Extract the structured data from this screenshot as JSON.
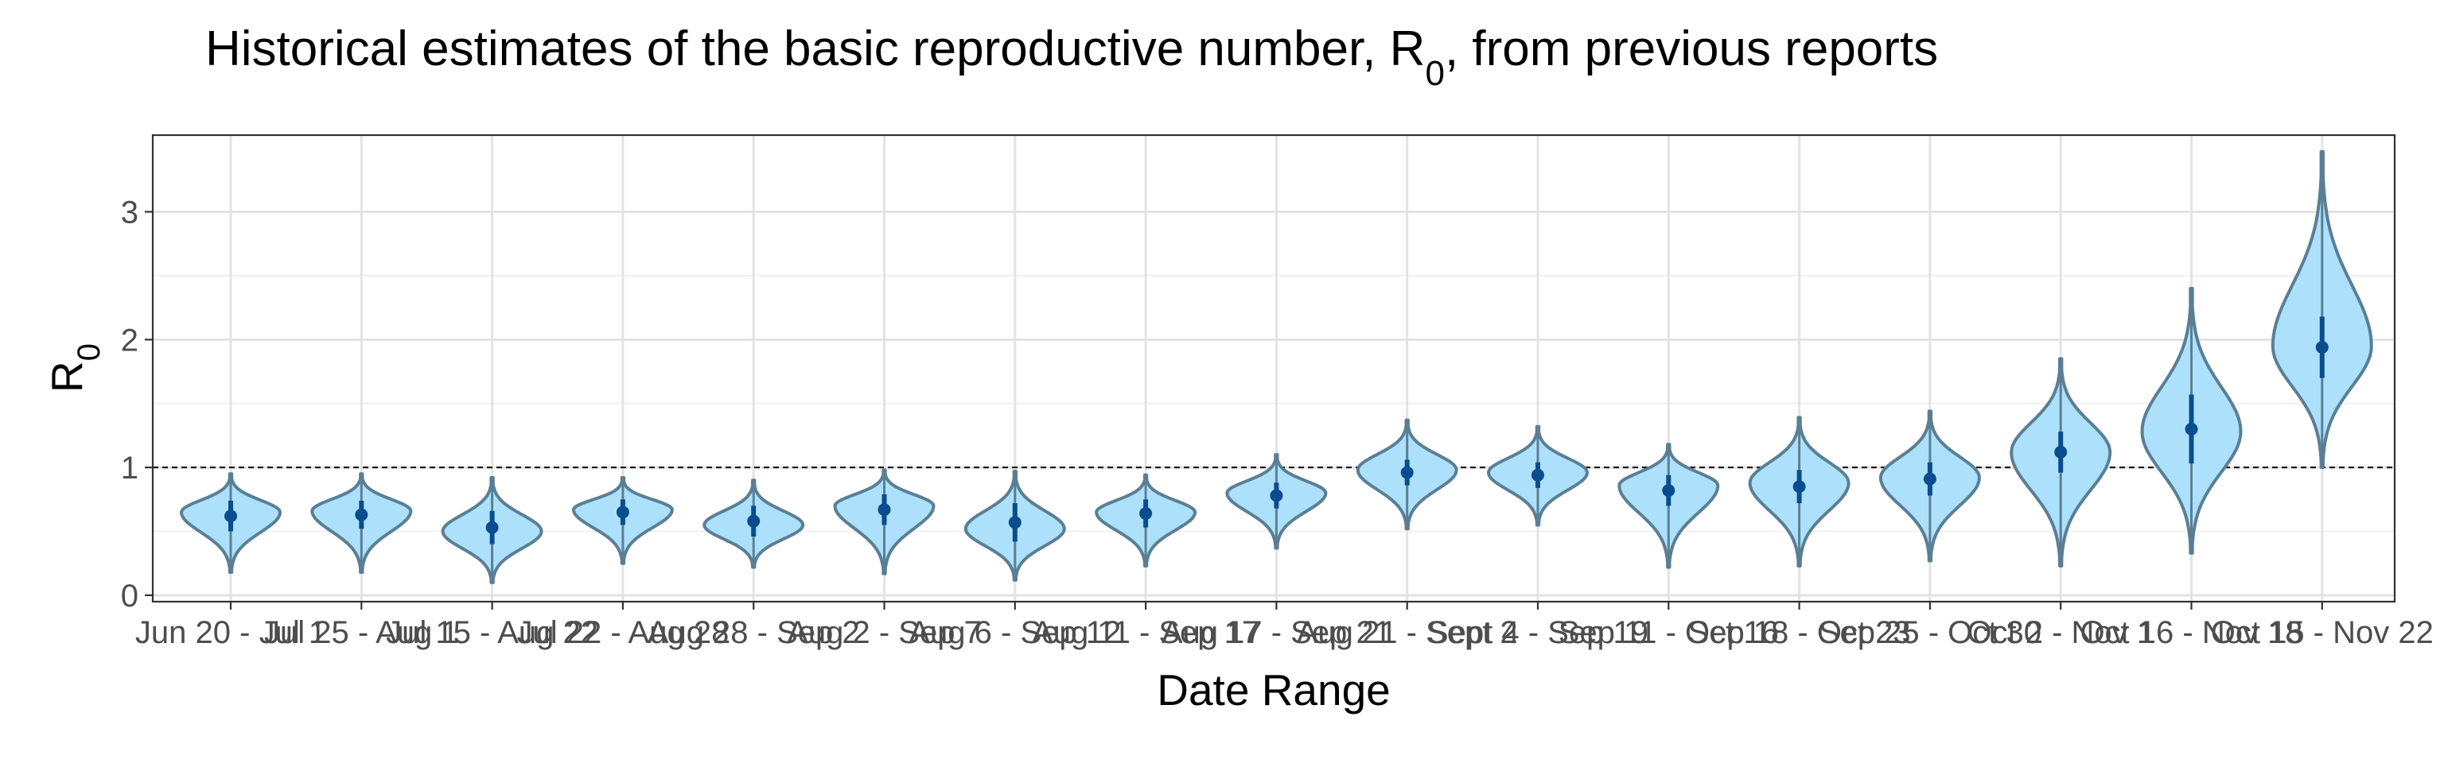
{
  "chart_data": {
    "type": "violin",
    "title_prefix": "Historical estimates of the basic reproductive number, R",
    "title_sub": "0",
    "title_suffix": ", from previous reports",
    "xlabel": "Date Range",
    "ylabel_main": "R",
    "ylabel_sub": "0",
    "ylim": [
      -0.05,
      3.6
    ],
    "yticks": [
      0,
      1,
      2,
      3
    ],
    "reference_line": 1,
    "grid": true,
    "categories": [
      "Jun 20 - Jul 1",
      "Jul 25 - Aug 1",
      "Jul 15 - Aug 22",
      "Jul 22 - Aug 28",
      "Aug 28 - Sep 2",
      "Aug 2 - Sep 7",
      "Aug 6 - Sep 12",
      "Aug 11 - Sep 17",
      "Aug 17 - Sep 21",
      "Aug 21 - Sept 2",
      "Sept 4 - Sep 19",
      "Sep 11 - Oct 16",
      "Sep 18 - Oct 23",
      "Sep 25 - Oct 30",
      "Oct 2 - Nov 1",
      "Oct 16 - Nov 18",
      "Oct 15 - Nov 22"
    ],
    "series": [
      {
        "mean": [
          0.62,
          0.63,
          0.53,
          0.65,
          0.58,
          0.67,
          0.57,
          0.64,
          0.78,
          0.96,
          0.94,
          0.82,
          0.85,
          0.91,
          1.12,
          1.3,
          1.94
        ],
        "lower": [
          0.5,
          0.52,
          0.4,
          0.55,
          0.46,
          0.55,
          0.42,
          0.53,
          0.68,
          0.86,
          0.84,
          0.7,
          0.72,
          0.78,
          0.96,
          1.03,
          1.7
        ],
        "upper": [
          0.74,
          0.74,
          0.66,
          0.75,
          0.7,
          0.79,
          0.72,
          0.75,
          0.88,
          1.06,
          1.04,
          0.94,
          0.98,
          1.04,
          1.28,
          1.57,
          2.18
        ],
        "min": [
          0.18,
          0.18,
          0.1,
          0.25,
          0.22,
          0.17,
          0.12,
          0.23,
          0.37,
          0.52,
          0.55,
          0.22,
          0.23,
          0.27,
          0.23,
          0.33,
          1.0
        ],
        "max": [
          0.95,
          0.95,
          0.92,
          0.92,
          0.9,
          0.98,
          0.97,
          0.94,
          1.1,
          1.37,
          1.32,
          1.18,
          1.39,
          1.44,
          1.85,
          2.4,
          3.47
        ],
        "peak": [
          0.65,
          0.66,
          0.5,
          0.67,
          0.55,
          0.7,
          0.52,
          0.65,
          0.8,
          0.98,
          0.96,
          0.86,
          0.88,
          0.92,
          1.12,
          1.28,
          1.95
        ],
        "fill_color": "#ade0fb",
        "outline_color": "#5a7f94",
        "point_color": "#0a4d8e"
      }
    ]
  }
}
